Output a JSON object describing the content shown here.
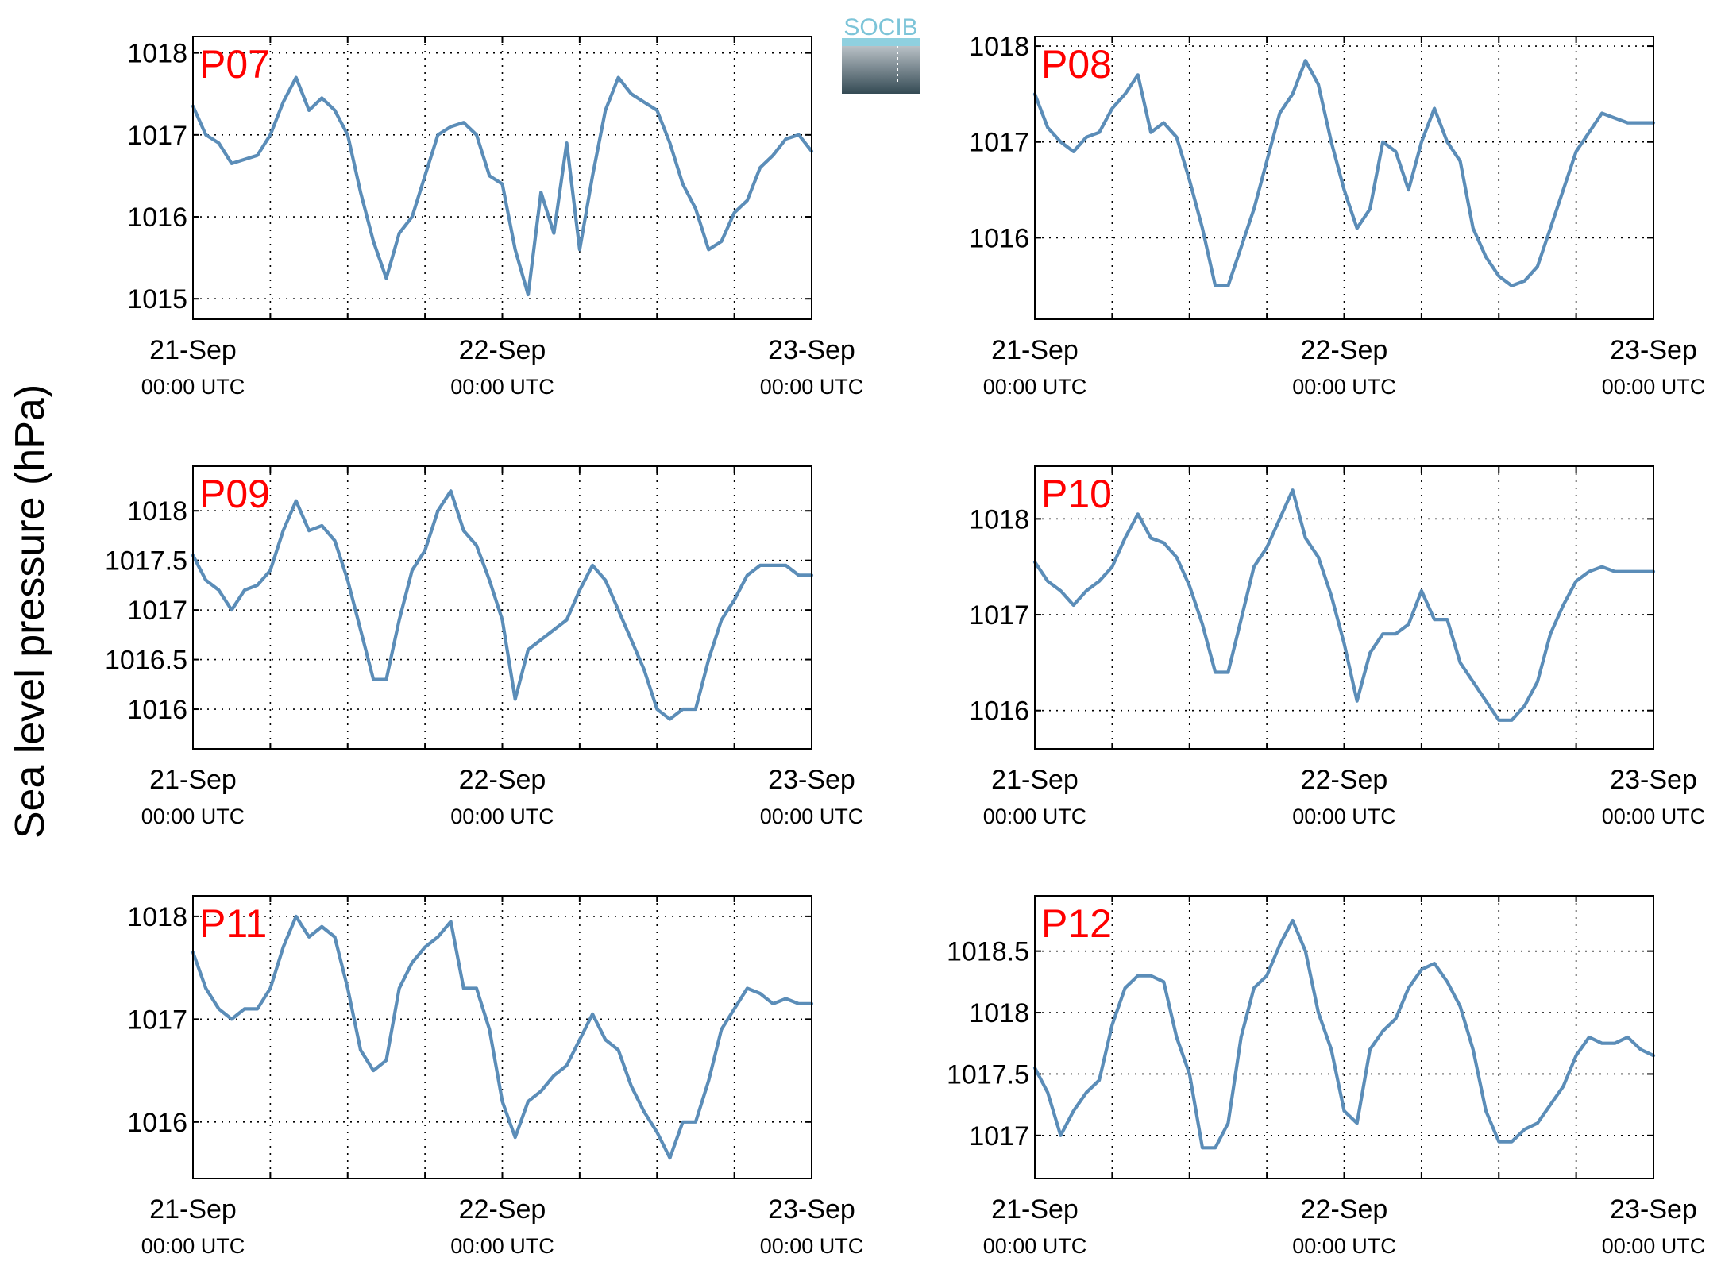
{
  "figure": {
    "ylabel": "Sea level pressure (hPa)",
    "logo_text": "SOCIB",
    "colors": {
      "line": "#5b8db8",
      "panel_label": "#ff0000",
      "logo_top": "#7cc4d8",
      "logo_bottom": "#344a54"
    }
  },
  "chart_data": [
    {
      "type": "line",
      "title": "P07",
      "xlim": [
        "2016-09-21 00:00",
        "2016-09-23 00:00"
      ],
      "xticks": [
        {
          "label": "21-Sep",
          "sub": "00:00 UTC"
        },
        {
          "label": "22-Sep",
          "sub": "00:00 UTC"
        },
        {
          "label": "23-Sep",
          "sub": "00:00 UTC"
        }
      ],
      "ylim": [
        1014.75,
        1018.2
      ],
      "yticks": [
        1015,
        1016,
        1017,
        1018
      ],
      "ytick_labels": [
        "1015",
        "1016",
        "1017",
        "1018"
      ],
      "grid": true,
      "series": [
        {
          "time_hours": [
            0,
            1,
            2,
            3,
            4,
            5,
            6,
            7,
            8,
            9,
            10,
            11,
            12,
            13,
            14,
            15,
            16,
            17,
            18,
            19,
            20,
            21,
            22,
            23,
            24,
            25,
            26,
            27,
            28,
            29,
            30,
            31,
            32,
            33,
            34,
            35,
            36,
            37,
            38,
            39,
            40,
            41,
            42,
            43,
            44,
            45,
            46,
            47,
            48
          ],
          "values": [
            1017.35,
            1017.0,
            1016.9,
            1016.65,
            1016.7,
            1016.75,
            1017.0,
            1017.4,
            1017.7,
            1017.3,
            1017.45,
            1017.3,
            1017.0,
            1016.3,
            1015.7,
            1015.25,
            1015.8,
            1016.0,
            1016.5,
            1017.0,
            1017.1,
            1017.15,
            1017.0,
            1016.5,
            1016.4,
            1015.6,
            1015.05,
            1016.3,
            1015.8,
            1016.9,
            1015.6,
            1016.5,
            1017.3,
            1017.7,
            1017.5,
            1017.4,
            1017.3,
            1016.9,
            1016.4,
            1016.1,
            1015.6,
            1015.7,
            1016.05,
            1016.2,
            1016.6,
            1016.75,
            1016.95,
            1017.0,
            1016.8
          ]
        }
      ]
    },
    {
      "type": "line",
      "title": "P08",
      "xlim": [
        "2016-09-21 00:00",
        "2016-09-23 00:00"
      ],
      "xticks": [
        {
          "label": "21-Sep",
          "sub": "00:00 UTC"
        },
        {
          "label": "22-Sep",
          "sub": "00:00 UTC"
        },
        {
          "label": "23-Sep",
          "sub": "00:00 UTC"
        }
      ],
      "ylim": [
        1015.15,
        1018.1
      ],
      "yticks": [
        1016,
        1017,
        1018
      ],
      "ytick_labels": [
        "1016",
        "1017",
        "1018"
      ],
      "grid": true,
      "series": [
        {
          "time_hours": [
            0,
            1,
            2,
            3,
            4,
            5,
            6,
            7,
            8,
            9,
            10,
            11,
            12,
            13,
            14,
            15,
            16,
            17,
            18,
            19,
            20,
            21,
            22,
            23,
            24,
            25,
            26,
            27,
            28,
            29,
            30,
            31,
            32,
            33,
            34,
            35,
            36,
            37,
            38,
            39,
            40,
            41,
            42,
            43,
            44,
            45,
            46,
            47,
            48
          ],
          "values": [
            1017.5,
            1017.15,
            1017.0,
            1016.9,
            1017.05,
            1017.1,
            1017.35,
            1017.5,
            1017.7,
            1017.1,
            1017.2,
            1017.05,
            1016.6,
            1016.1,
            1015.5,
            1015.5,
            1015.9,
            1016.3,
            1016.8,
            1017.3,
            1017.5,
            1017.85,
            1017.6,
            1017.0,
            1016.5,
            1016.1,
            1016.3,
            1017.0,
            1016.9,
            1016.5,
            1017.0,
            1017.35,
            1017.0,
            1016.8,
            1016.1,
            1015.8,
            1015.6,
            1015.5,
            1015.55,
            1015.7,
            1016.1,
            1016.5,
            1016.9,
            1017.1,
            1017.3,
            1017.25,
            1017.2,
            1017.2,
            1017.2
          ]
        }
      ]
    },
    {
      "type": "line",
      "title": "P09",
      "xlim": [
        "2016-09-21 00:00",
        "2016-09-23 00:00"
      ],
      "xticks": [
        {
          "label": "21-Sep",
          "sub": "00:00 UTC"
        },
        {
          "label": "22-Sep",
          "sub": "00:00 UTC"
        },
        {
          "label": "23-Sep",
          "sub": "00:00 UTC"
        }
      ],
      "ylim": [
        1015.6,
        1018.45
      ],
      "yticks": [
        1016,
        1016.5,
        1017,
        1017.5,
        1018
      ],
      "ytick_labels": [
        "1016",
        "1016.5",
        "1017",
        "1017.5",
        "1018"
      ],
      "grid": true,
      "series": [
        {
          "time_hours": [
            0,
            1,
            2,
            3,
            4,
            5,
            6,
            7,
            8,
            9,
            10,
            11,
            12,
            13,
            14,
            15,
            16,
            17,
            18,
            19,
            20,
            21,
            22,
            23,
            24,
            25,
            26,
            27,
            28,
            29,
            30,
            31,
            32,
            33,
            34,
            35,
            36,
            37,
            38,
            39,
            40,
            41,
            42,
            43,
            44,
            45,
            46,
            47,
            48
          ],
          "values": [
            1017.55,
            1017.3,
            1017.2,
            1017.0,
            1017.2,
            1017.25,
            1017.4,
            1017.8,
            1018.1,
            1017.8,
            1017.85,
            1017.7,
            1017.3,
            1016.8,
            1016.3,
            1016.3,
            1016.9,
            1017.4,
            1017.6,
            1018.0,
            1018.2,
            1017.8,
            1017.65,
            1017.3,
            1016.9,
            1016.1,
            1016.6,
            1016.7,
            1016.8,
            1016.9,
            1017.2,
            1017.45,
            1017.3,
            1017.0,
            1016.7,
            1016.4,
            1016.0,
            1015.9,
            1016.0,
            1016.0,
            1016.5,
            1016.9,
            1017.1,
            1017.35,
            1017.45,
            1017.45,
            1017.45,
            1017.35,
            1017.35
          ]
        }
      ]
    },
    {
      "type": "line",
      "title": "P10",
      "xlim": [
        "2016-09-21 00:00",
        "2016-09-23 00:00"
      ],
      "xticks": [
        {
          "label": "21-Sep",
          "sub": "00:00 UTC"
        },
        {
          "label": "22-Sep",
          "sub": "00:00 UTC"
        },
        {
          "label": "23-Sep",
          "sub": "00:00 UTC"
        }
      ],
      "ylim": [
        1015.6,
        1018.55
      ],
      "yticks": [
        1016,
        1017,
        1018
      ],
      "ytick_labels": [
        "1016",
        "1017",
        "1018"
      ],
      "grid": true,
      "series": [
        {
          "time_hours": [
            0,
            1,
            2,
            3,
            4,
            5,
            6,
            7,
            8,
            9,
            10,
            11,
            12,
            13,
            14,
            15,
            16,
            17,
            18,
            19,
            20,
            21,
            22,
            23,
            24,
            25,
            26,
            27,
            28,
            29,
            30,
            31,
            32,
            33,
            34,
            35,
            36,
            37,
            38,
            39,
            40,
            41,
            42,
            43,
            44,
            45,
            46,
            47,
            48
          ],
          "values": [
            1017.55,
            1017.35,
            1017.25,
            1017.1,
            1017.25,
            1017.35,
            1017.5,
            1017.8,
            1018.05,
            1017.8,
            1017.75,
            1017.6,
            1017.3,
            1016.9,
            1016.4,
            1016.4,
            1016.95,
            1017.5,
            1017.7,
            1018.0,
            1018.3,
            1017.8,
            1017.6,
            1017.2,
            1016.7,
            1016.1,
            1016.6,
            1016.8,
            1016.8,
            1016.9,
            1017.25,
            1016.95,
            1016.95,
            1016.5,
            1016.3,
            1016.1,
            1015.9,
            1015.9,
            1016.05,
            1016.3,
            1016.8,
            1017.1,
            1017.35,
            1017.45,
            1017.5,
            1017.45,
            1017.45,
            1017.45,
            1017.45
          ]
        }
      ]
    },
    {
      "type": "line",
      "title": "P11",
      "xlim": [
        "2016-09-21 00:00",
        "2016-09-23 00:00"
      ],
      "xticks": [
        {
          "label": "21-Sep",
          "sub": "00:00 UTC"
        },
        {
          "label": "22-Sep",
          "sub": "00:00 UTC"
        },
        {
          "label": "23-Sep",
          "sub": "00:00 UTC"
        }
      ],
      "ylim": [
        1015.45,
        1018.2
      ],
      "yticks": [
        1016,
        1017,
        1018
      ],
      "ytick_labels": [
        "1016",
        "1017",
        "1018"
      ],
      "grid": true,
      "series": [
        {
          "time_hours": [
            0,
            1,
            2,
            3,
            4,
            5,
            6,
            7,
            8,
            9,
            10,
            11,
            12,
            13,
            14,
            15,
            16,
            17,
            18,
            19,
            20,
            21,
            22,
            23,
            24,
            25,
            26,
            27,
            28,
            29,
            30,
            31,
            32,
            33,
            34,
            35,
            36,
            37,
            38,
            39,
            40,
            41,
            42,
            43,
            44,
            45,
            46,
            47,
            48
          ],
          "values": [
            1017.65,
            1017.3,
            1017.1,
            1017.0,
            1017.1,
            1017.1,
            1017.3,
            1017.7,
            1018.0,
            1017.8,
            1017.9,
            1017.8,
            1017.3,
            1016.7,
            1016.5,
            1016.6,
            1017.3,
            1017.55,
            1017.7,
            1017.8,
            1017.95,
            1017.3,
            1017.3,
            1016.9,
            1016.2,
            1015.85,
            1016.2,
            1016.3,
            1016.45,
            1016.55,
            1016.8,
            1017.05,
            1016.8,
            1016.7,
            1016.35,
            1016.1,
            1015.9,
            1015.65,
            1016.0,
            1016.0,
            1016.4,
            1016.9,
            1017.1,
            1017.3,
            1017.25,
            1017.15,
            1017.2,
            1017.15,
            1017.15
          ]
        }
      ]
    },
    {
      "type": "line",
      "title": "P12",
      "xlim": [
        "2016-09-21 00:00",
        "2016-09-23 00:00"
      ],
      "xticks": [
        {
          "label": "21-Sep",
          "sub": "00:00 UTC"
        },
        {
          "label": "22-Sep",
          "sub": "00:00 UTC"
        },
        {
          "label": "23-Sep",
          "sub": "00:00 UTC"
        }
      ],
      "ylim": [
        1016.65,
        1018.95
      ],
      "yticks": [
        1017,
        1017.5,
        1018,
        1018.5
      ],
      "ytick_labels": [
        "1017",
        "1017.5",
        "1018",
        "1018.5"
      ],
      "grid": true,
      "series": [
        {
          "time_hours": [
            0,
            1,
            2,
            3,
            4,
            5,
            6,
            7,
            8,
            9,
            10,
            11,
            12,
            13,
            14,
            15,
            16,
            17,
            18,
            19,
            20,
            21,
            22,
            23,
            24,
            25,
            26,
            27,
            28,
            29,
            30,
            31,
            32,
            33,
            34,
            35,
            36,
            37,
            38,
            39,
            40,
            41,
            42,
            43,
            44,
            45,
            46,
            47,
            48
          ],
          "values": [
            1017.55,
            1017.35,
            1017.0,
            1017.2,
            1017.35,
            1017.45,
            1017.9,
            1018.2,
            1018.3,
            1018.3,
            1018.25,
            1017.8,
            1017.5,
            1016.9,
            1016.9,
            1017.1,
            1017.8,
            1018.2,
            1018.3,
            1018.55,
            1018.75,
            1018.5,
            1018.0,
            1017.7,
            1017.2,
            1017.1,
            1017.7,
            1017.85,
            1017.95,
            1018.2,
            1018.35,
            1018.4,
            1018.25,
            1018.05,
            1017.7,
            1017.2,
            1016.95,
            1016.95,
            1017.05,
            1017.1,
            1017.25,
            1017.4,
            1017.65,
            1017.8,
            1017.75,
            1017.75,
            1017.8,
            1017.7,
            1017.65
          ]
        }
      ]
    }
  ]
}
